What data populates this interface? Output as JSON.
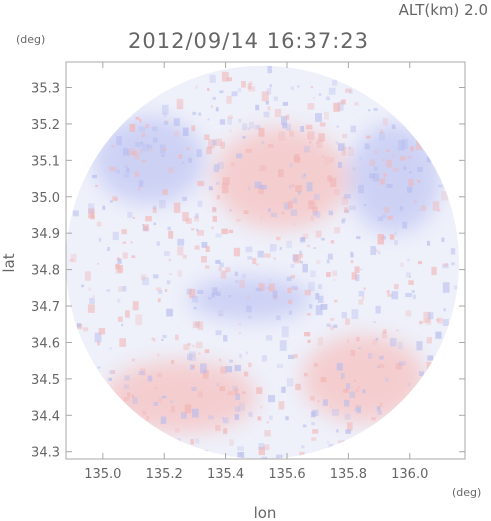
{
  "chart_data": {
    "type": "heatmap",
    "title": "2012/09/14 16:37:23",
    "altitude_label": "ALT(km) 2.0",
    "xlabel": "lon",
    "ylabel": "lat",
    "x_unit": "(deg)",
    "y_unit": "(deg)",
    "xlim": [
      134.88,
      136.18
    ],
    "ylim": [
      34.28,
      35.37
    ],
    "x_ticks": [
      "135.0",
      "135.2",
      "135.4",
      "135.6",
      "135.8",
      "136.0"
    ],
    "y_ticks": [
      "35.3",
      "35.2",
      "35.1",
      "35.0",
      "34.9",
      "34.8",
      "34.7",
      "34.6",
      "34.5",
      "34.4",
      "34.3"
    ],
    "x_tick_values": [
      135.0,
      135.2,
      135.4,
      135.6,
      135.8,
      136.0
    ],
    "y_tick_values": [
      35.3,
      35.2,
      35.1,
      35.0,
      34.9,
      34.8,
      34.7,
      34.6,
      34.5,
      34.4,
      34.3
    ],
    "radar_center": {
      "lon": 135.52,
      "lat": 34.82
    },
    "radar_range_deg_lat": 0.54,
    "grid": false,
    "colors": {
      "positive": "#f6c8c8",
      "negative": "#c8ccf4",
      "neutral": "#eef0fa",
      "axis": "#999999"
    },
    "regions": [
      {
        "name": "positive",
        "lon": 135.58,
        "lat": 35.05,
        "rx": 0.22,
        "ry": 0.14
      },
      {
        "name": "negative",
        "lon": 135.48,
        "lat": 34.72,
        "rx": 0.2,
        "ry": 0.06
      },
      {
        "name": "positive",
        "lon": 135.25,
        "lat": 34.45,
        "rx": 0.25,
        "ry": 0.1
      },
      {
        "name": "positive",
        "lon": 135.85,
        "lat": 34.5,
        "rx": 0.2,
        "ry": 0.12
      },
      {
        "name": "negative",
        "lon": 135.15,
        "lat": 35.1,
        "rx": 0.18,
        "ry": 0.12
      },
      {
        "name": "negative",
        "lon": 135.95,
        "lat": 35.05,
        "rx": 0.15,
        "ry": 0.15
      }
    ]
  }
}
